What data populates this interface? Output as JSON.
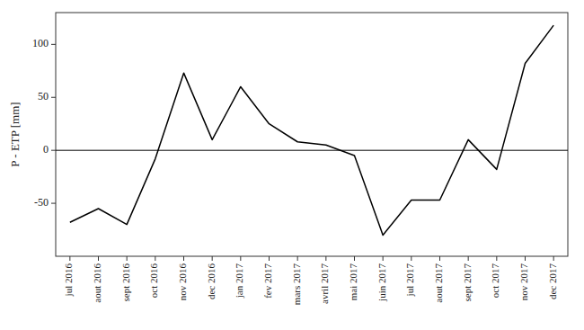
{
  "chart_data": {
    "type": "line",
    "categories": [
      "jul 2016",
      "aout 2016",
      "sept 2016",
      "oct 2016",
      "nov 2016",
      "dec 2016",
      "jan 2017",
      "fev 2017",
      "mars 2017",
      "avril 2017",
      "mai 2017",
      "juin 2017",
      "jul 2017",
      "aout 2017",
      "sept 2017",
      "oct 2017",
      "nov 2017",
      "dec 2017"
    ],
    "values": [
      -68,
      -55,
      -70,
      -8,
      73,
      10,
      60,
      25,
      8,
      5,
      -5,
      -80,
      -47,
      -47,
      10,
      -18,
      82,
      118
    ],
    "y_label": "P - ETP [mm]",
    "ylim": [
      -100,
      130
    ],
    "yticks": [
      -50,
      0,
      50,
      100
    ],
    "color": "#000000",
    "hline": 0,
    "grid": false
  }
}
